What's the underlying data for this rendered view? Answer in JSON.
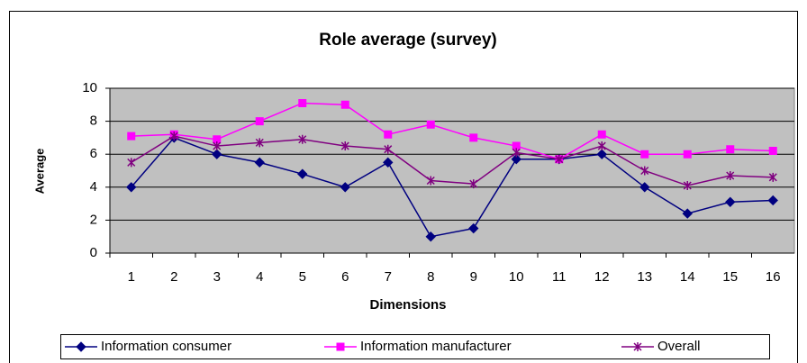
{
  "chart_data": {
    "type": "line",
    "title": "Role average (survey)",
    "x_label": "Dimensions",
    "y_label": "Average",
    "categories": [
      "1",
      "2",
      "3",
      "4",
      "5",
      "6",
      "7",
      "8",
      "9",
      "10",
      "11",
      "12",
      "13",
      "14",
      "15",
      "16"
    ],
    "series": [
      {
        "name": "Information consumer",
        "color": "#000080",
        "marker": "diamond",
        "values": [
          4,
          7,
          6,
          5.5,
          4.8,
          4,
          5.5,
          1,
          1.5,
          5.7,
          5.7,
          6,
          4,
          2.4,
          3.1,
          3.2
        ]
      },
      {
        "name": "Information manufacturer",
        "color": "#ff00ff",
        "marker": "square",
        "values": [
          7.1,
          7.2,
          6.9,
          8,
          9.1,
          9,
          7.2,
          7.8,
          7,
          6.5,
          5.7,
          7.2,
          6,
          6,
          6.3,
          6.2
        ]
      },
      {
        "name": "Overall",
        "color": "#800080",
        "marker": "star",
        "values": [
          5.5,
          7.1,
          6.5,
          6.7,
          6.9,
          6.5,
          6.3,
          4.4,
          4.2,
          6.1,
          5.7,
          6.5,
          5,
          4.1,
          4.7,
          4.6
        ]
      }
    ],
    "ylim": [
      0,
      10
    ],
    "yticks": [
      0,
      2,
      4,
      6,
      8,
      10
    ],
    "grid": true,
    "legend": "bottom"
  }
}
